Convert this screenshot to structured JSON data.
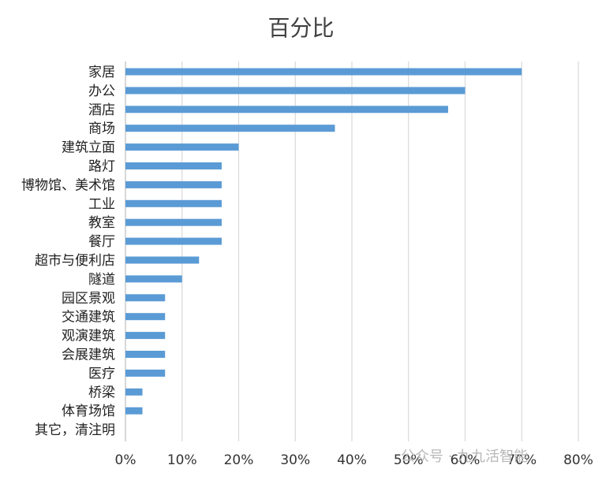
{
  "chart_data": {
    "type": "bar",
    "orientation": "horizontal",
    "title": "百分比",
    "xlabel": "",
    "ylabel": "",
    "xlim": [
      0,
      80
    ],
    "x_ticks": [
      "0%",
      "10%",
      "20%",
      "30%",
      "40%",
      "50%",
      "60%",
      "70%",
      "80%"
    ],
    "grid": "vertical",
    "bar_color": "#5B9BD5",
    "categories": [
      "家居",
      "办公",
      "酒店",
      "商场",
      "建筑立面",
      "路灯",
      "博物馆、美术馆",
      "工业",
      "教室",
      "餐厅",
      "超市与便利店",
      "隧道",
      "园区景观",
      "交通建筑",
      "观演建筑",
      "会展建筑",
      "医疗",
      "桥梁",
      "体育场馆",
      "其它，清注明"
    ],
    "values": [
      70,
      60,
      57,
      37,
      20,
      17,
      17,
      17,
      17,
      17,
      13,
      10,
      7,
      7,
      7,
      7,
      7,
      3,
      3,
      0
    ]
  },
  "watermark": "公众号 · 九九活智能"
}
